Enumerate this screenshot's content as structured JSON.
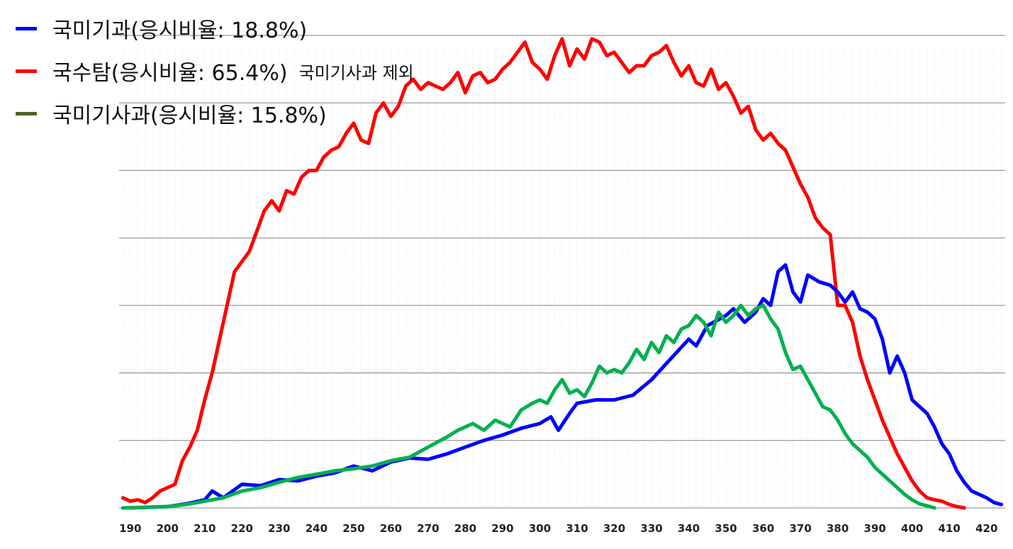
{
  "chart_data": {
    "type": "line",
    "title": "",
    "xlabel": "",
    "ylabel": "",
    "xlim": [
      187,
      425
    ],
    "ylim": [
      0,
      7
    ],
    "x_ticks": [
      190,
      200,
      210,
      220,
      230,
      240,
      250,
      260,
      270,
      280,
      290,
      300,
      310,
      320,
      330,
      340,
      350,
      360,
      370,
      380,
      390,
      400,
      410,
      420
    ],
    "y_gridlines": [
      1,
      2,
      3,
      4,
      5,
      6,
      7
    ],
    "grid": true,
    "legend_position": "top-left",
    "series": [
      {
        "name": "국미기과(응시비율: 18.8%)",
        "color": "#0000ff",
        "points": [
          [
            190,
            0.0
          ],
          [
            200,
            0.02
          ],
          [
            205,
            0.06
          ],
          [
            210,
            0.12
          ],
          [
            212,
            0.25
          ],
          [
            215,
            0.15
          ],
          [
            220,
            0.35
          ],
          [
            225,
            0.33
          ],
          [
            230,
            0.42
          ],
          [
            235,
            0.4
          ],
          [
            240,
            0.47
          ],
          [
            245,
            0.52
          ],
          [
            250,
            0.62
          ],
          [
            255,
            0.55
          ],
          [
            260,
            0.68
          ],
          [
            265,
            0.74
          ],
          [
            270,
            0.72
          ],
          [
            275,
            0.8
          ],
          [
            280,
            0.9
          ],
          [
            285,
            1.0
          ],
          [
            290,
            1.08
          ],
          [
            295,
            1.18
          ],
          [
            300,
            1.25
          ],
          [
            303,
            1.35
          ],
          [
            305,
            1.15
          ],
          [
            308,
            1.4
          ],
          [
            310,
            1.55
          ],
          [
            315,
            1.6
          ],
          [
            320,
            1.6
          ],
          [
            325,
            1.67
          ],
          [
            330,
            1.9
          ],
          [
            335,
            2.2
          ],
          [
            340,
            2.5
          ],
          [
            342,
            2.4
          ],
          [
            345,
            2.7
          ],
          [
            350,
            2.85
          ],
          [
            352,
            2.95
          ],
          [
            355,
            2.75
          ],
          [
            358,
            2.9
          ],
          [
            360,
            3.1
          ],
          [
            362,
            3.0
          ],
          [
            364,
            3.5
          ],
          [
            366,
            3.6
          ],
          [
            368,
            3.2
          ],
          [
            370,
            3.05
          ],
          [
            372,
            3.45
          ],
          [
            375,
            3.35
          ],
          [
            378,
            3.3
          ],
          [
            380,
            3.2
          ],
          [
            382,
            3.05
          ],
          [
            384,
            3.2
          ],
          [
            386,
            2.95
          ],
          [
            388,
            2.9
          ],
          [
            390,
            2.8
          ],
          [
            392,
            2.5
          ],
          [
            394,
            2.0
          ],
          [
            396,
            2.25
          ],
          [
            398,
            2.0
          ],
          [
            400,
            1.6
          ],
          [
            402,
            1.5
          ],
          [
            404,
            1.4
          ],
          [
            406,
            1.2
          ],
          [
            408,
            0.95
          ],
          [
            410,
            0.8
          ],
          [
            412,
            0.55
          ],
          [
            414,
            0.38
          ],
          [
            416,
            0.25
          ],
          [
            418,
            0.2
          ],
          [
            420,
            0.15
          ],
          [
            422,
            0.08
          ],
          [
            424,
            0.05
          ]
        ]
      },
      {
        "name": "국수탐(응시비율: 65.4%)",
        "note": "국미기사과 제외",
        "color": "#ff0000",
        "points": [
          [
            188,
            0.15
          ],
          [
            190,
            0.1
          ],
          [
            192,
            0.12
          ],
          [
            194,
            0.08
          ],
          [
            196,
            0.15
          ],
          [
            198,
            0.25
          ],
          [
            200,
            0.3
          ],
          [
            202,
            0.35
          ],
          [
            204,
            0.7
          ],
          [
            206,
            0.9
          ],
          [
            208,
            1.15
          ],
          [
            210,
            1.6
          ],
          [
            212,
            2.0
          ],
          [
            214,
            2.5
          ],
          [
            216,
            3.0
          ],
          [
            218,
            3.5
          ],
          [
            220,
            3.65
          ],
          [
            222,
            3.8
          ],
          [
            224,
            4.1
          ],
          [
            226,
            4.4
          ],
          [
            228,
            4.55
          ],
          [
            230,
            4.4
          ],
          [
            232,
            4.7
          ],
          [
            234,
            4.65
          ],
          [
            236,
            4.9
          ],
          [
            238,
            5.0
          ],
          [
            240,
            5.0
          ],
          [
            242,
            5.2
          ],
          [
            244,
            5.3
          ],
          [
            246,
            5.35
          ],
          [
            248,
            5.55
          ],
          [
            250,
            5.7
          ],
          [
            252,
            5.45
          ],
          [
            254,
            5.4
          ],
          [
            256,
            5.85
          ],
          [
            258,
            6.0
          ],
          [
            260,
            5.8
          ],
          [
            262,
            5.95
          ],
          [
            264,
            6.25
          ],
          [
            266,
            6.35
          ],
          [
            268,
            6.2
          ],
          [
            270,
            6.3
          ],
          [
            272,
            6.25
          ],
          [
            274,
            6.2
          ],
          [
            276,
            6.3
          ],
          [
            278,
            6.45
          ],
          [
            280,
            6.15
          ],
          [
            282,
            6.4
          ],
          [
            284,
            6.45
          ],
          [
            286,
            6.3
          ],
          [
            288,
            6.35
          ],
          [
            290,
            6.5
          ],
          [
            292,
            6.6
          ],
          [
            294,
            6.75
          ],
          [
            296,
            6.9
          ],
          [
            298,
            6.6
          ],
          [
            300,
            6.5
          ],
          [
            302,
            6.35
          ],
          [
            304,
            6.7
          ],
          [
            306,
            6.95
          ],
          [
            308,
            6.55
          ],
          [
            310,
            6.8
          ],
          [
            312,
            6.65
          ],
          [
            314,
            6.95
          ],
          [
            316,
            6.9
          ],
          [
            318,
            6.7
          ],
          [
            320,
            6.75
          ],
          [
            322,
            6.6
          ],
          [
            324,
            6.45
          ],
          [
            326,
            6.55
          ],
          [
            328,
            6.55
          ],
          [
            330,
            6.7
          ],
          [
            332,
            6.75
          ],
          [
            334,
            6.85
          ],
          [
            336,
            6.6
          ],
          [
            338,
            6.4
          ],
          [
            340,
            6.55
          ],
          [
            342,
            6.3
          ],
          [
            344,
            6.25
          ],
          [
            346,
            6.5
          ],
          [
            348,
            6.2
          ],
          [
            350,
            6.3
          ],
          [
            352,
            6.1
          ],
          [
            354,
            5.85
          ],
          [
            356,
            5.95
          ],
          [
            358,
            5.6
          ],
          [
            360,
            5.45
          ],
          [
            362,
            5.55
          ],
          [
            364,
            5.4
          ],
          [
            366,
            5.3
          ],
          [
            368,
            5.05
          ],
          [
            370,
            4.8
          ],
          [
            372,
            4.6
          ],
          [
            374,
            4.3
          ],
          [
            376,
            4.15
          ],
          [
            378,
            4.05
          ],
          [
            380,
            3.0
          ],
          [
            382,
            3.0
          ],
          [
            384,
            2.75
          ],
          [
            386,
            2.25
          ],
          [
            388,
            1.9
          ],
          [
            390,
            1.6
          ],
          [
            392,
            1.3
          ],
          [
            394,
            1.05
          ],
          [
            396,
            0.8
          ],
          [
            398,
            0.6
          ],
          [
            400,
            0.4
          ],
          [
            402,
            0.25
          ],
          [
            404,
            0.15
          ],
          [
            406,
            0.12
          ],
          [
            408,
            0.1
          ],
          [
            410,
            0.05
          ],
          [
            412,
            0.02
          ],
          [
            414,
            0.0
          ]
        ]
      },
      {
        "name": "국미기사과(응시비율: 15.8%)",
        "color": "#00b050",
        "legend_color": "#4f6228",
        "points": [
          [
            188,
            0.0
          ],
          [
            200,
            0.02
          ],
          [
            205,
            0.05
          ],
          [
            210,
            0.1
          ],
          [
            215,
            0.15
          ],
          [
            220,
            0.25
          ],
          [
            225,
            0.3
          ],
          [
            230,
            0.38
          ],
          [
            235,
            0.45
          ],
          [
            240,
            0.5
          ],
          [
            245,
            0.55
          ],
          [
            250,
            0.58
          ],
          [
            255,
            0.62
          ],
          [
            260,
            0.7
          ],
          [
            265,
            0.75
          ],
          [
            270,
            0.9
          ],
          [
            275,
            1.05
          ],
          [
            278,
            1.15
          ],
          [
            280,
            1.2
          ],
          [
            282,
            1.25
          ],
          [
            285,
            1.15
          ],
          [
            288,
            1.3
          ],
          [
            290,
            1.25
          ],
          [
            292,
            1.2
          ],
          [
            295,
            1.45
          ],
          [
            298,
            1.55
          ],
          [
            300,
            1.6
          ],
          [
            302,
            1.55
          ],
          [
            304,
            1.75
          ],
          [
            306,
            1.9
          ],
          [
            308,
            1.7
          ],
          [
            310,
            1.75
          ],
          [
            312,
            1.65
          ],
          [
            314,
            1.85
          ],
          [
            316,
            2.1
          ],
          [
            318,
            2.0
          ],
          [
            320,
            2.05
          ],
          [
            322,
            2.0
          ],
          [
            324,
            2.15
          ],
          [
            326,
            2.35
          ],
          [
            328,
            2.2
          ],
          [
            330,
            2.45
          ],
          [
            332,
            2.3
          ],
          [
            334,
            2.55
          ],
          [
            336,
            2.45
          ],
          [
            338,
            2.65
          ],
          [
            340,
            2.7
          ],
          [
            342,
            2.85
          ],
          [
            344,
            2.75
          ],
          [
            346,
            2.55
          ],
          [
            348,
            2.9
          ],
          [
            350,
            2.75
          ],
          [
            352,
            2.85
          ],
          [
            354,
            3.0
          ],
          [
            356,
            2.85
          ],
          [
            358,
            2.95
          ],
          [
            360,
            3.0
          ],
          [
            362,
            2.8
          ],
          [
            364,
            2.65
          ],
          [
            366,
            2.3
          ],
          [
            368,
            2.05
          ],
          [
            370,
            2.1
          ],
          [
            372,
            1.9
          ],
          [
            374,
            1.7
          ],
          [
            376,
            1.5
          ],
          [
            378,
            1.45
          ],
          [
            380,
            1.3
          ],
          [
            382,
            1.1
          ],
          [
            384,
            0.95
          ],
          [
            386,
            0.85
          ],
          [
            388,
            0.75
          ],
          [
            390,
            0.6
          ],
          [
            392,
            0.5
          ],
          [
            394,
            0.4
          ],
          [
            396,
            0.3
          ],
          [
            398,
            0.2
          ],
          [
            400,
            0.12
          ],
          [
            402,
            0.06
          ],
          [
            404,
            0.03
          ],
          [
            406,
            0.0
          ]
        ]
      }
    ]
  }
}
